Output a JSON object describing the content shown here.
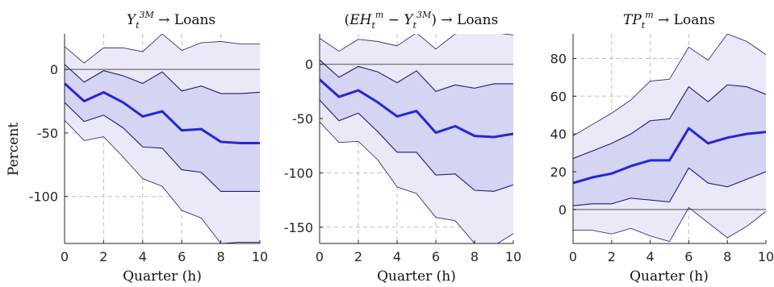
{
  "colors": {
    "outer_band": "#e9e9f8",
    "inner_band": "#d4d4f3",
    "band_edge": "#1c1c6e",
    "median_line": "#2626d4",
    "zero_line": "#6e6e6e",
    "grid": "#bdbdbd",
    "axis": "#262626"
  },
  "chart_data": [
    {
      "type": "area",
      "title": "Y_t^{3M} → Loans",
      "title_parts": {
        "base": "Y",
        "sub": "t",
        "sup": "3M",
        "suffix": " → Loans"
      },
      "xlabel": "Quarter (h)",
      "ylabel": "Percent",
      "xlim": [
        0,
        10
      ],
      "ylim": [
        -137,
        28
      ],
      "xticks": [
        0,
        2,
        4,
        6,
        8,
        10
      ],
      "yticks": [
        0,
        -50,
        -100
      ],
      "x": [
        0,
        1,
        2,
        3,
        4,
        5,
        6,
        7,
        8,
        9,
        10
      ],
      "series": [
        {
          "role": "upper_outer",
          "values": [
            18,
            5,
            17,
            17,
            14,
            28,
            15,
            21,
            22,
            20,
            20
          ]
        },
        {
          "role": "upper_inner",
          "values": [
            4,
            -10,
            -1,
            -5,
            -11,
            -2,
            -17,
            -13,
            -19,
            -19,
            -18
          ]
        },
        {
          "role": "median",
          "values": [
            -11,
            -25,
            -18,
            -26,
            -37,
            -33,
            -48,
            -47,
            -57,
            -58,
            -58
          ]
        },
        {
          "role": "lower_inner",
          "values": [
            -26,
            -41,
            -36,
            -46,
            -61,
            -62,
            -79,
            -81,
            -96,
            -96,
            -96
          ]
        },
        {
          "role": "lower_outer",
          "values": [
            -40,
            -56,
            -53,
            -69,
            -86,
            -92,
            -111,
            -117,
            -137,
            -136,
            -136
          ]
        }
      ],
      "grid": true
    },
    {
      "type": "area",
      "title": "(EH_t^m − Y_t^{3M}) → Loans",
      "title_parts": {
        "lead": "(",
        "base1": "EH",
        "sub1": "t",
        "sup1": "m",
        "minus": " − ",
        "base2": "Y",
        "sub2": "t",
        "sup2": "3M",
        "suffix": ") → Loans"
      },
      "xlabel": "Quarter (h)",
      "ylabel": "",
      "xlim": [
        0,
        10
      ],
      "ylim": [
        -165,
        28
      ],
      "xticks": [
        0,
        2,
        4,
        6,
        8,
        10
      ],
      "yticks": [
        0,
        -50,
        -100,
        -150
      ],
      "x": [
        0,
        1,
        2,
        3,
        4,
        5,
        6,
        7,
        8,
        9,
        10
      ],
      "series": [
        {
          "role": "upper_outer",
          "values": [
            24,
            12,
            23,
            21,
            17,
            29,
            14,
            28,
            31,
            29,
            27
          ]
        },
        {
          "role": "upper_inner",
          "values": [
            4,
            -12,
            -2,
            -7,
            -17,
            -6,
            -25,
            -19,
            -22,
            -18,
            -18
          ]
        },
        {
          "role": "median",
          "values": [
            -14,
            -30,
            -24,
            -35,
            -48,
            -43,
            -63,
            -57,
            -66,
            -67,
            -64
          ]
        },
        {
          "role": "lower_inner",
          "values": [
            -33,
            -52,
            -45,
            -62,
            -81,
            -81,
            -102,
            -101,
            -116,
            -117,
            -111
          ]
        },
        {
          "role": "lower_outer",
          "values": [
            -53,
            -72,
            -71,
            -88,
            -113,
            -119,
            -141,
            -144,
            -165,
            -167,
            -156
          ]
        }
      ],
      "grid": true
    },
    {
      "type": "area",
      "title": "TP_t^m → Loans",
      "title_parts": {
        "base": "TP",
        "sub": "t",
        "sup": "m",
        "suffix": " → Loans"
      },
      "xlabel": "Quarter (h)",
      "ylabel": "",
      "xlim": [
        0,
        10
      ],
      "ylim": [
        -18,
        93
      ],
      "xticks": [
        0,
        2,
        4,
        6,
        8,
        10
      ],
      "yticks": [
        0,
        20,
        40,
        60,
        80
      ],
      "x": [
        0,
        1,
        2,
        3,
        4,
        5,
        6,
        7,
        8,
        9,
        10
      ],
      "series": [
        {
          "role": "upper_outer",
          "values": [
            39,
            45,
            51,
            58,
            68,
            69,
            86,
            79,
            93,
            89,
            82
          ]
        },
        {
          "role": "upper_inner",
          "values": [
            27,
            31,
            35,
            40,
            47,
            48,
            65,
            57,
            66,
            65,
            61
          ]
        },
        {
          "role": "median",
          "values": [
            14,
            17,
            19,
            23,
            26,
            26,
            43,
            35,
            38,
            40,
            41
          ]
        },
        {
          "role": "lower_inner",
          "values": [
            2,
            3,
            3,
            6,
            5,
            4,
            22,
            14,
            12,
            16,
            20
          ]
        },
        {
          "role": "lower_outer",
          "values": [
            -11,
            -11,
            -13,
            -10,
            -14,
            -17,
            1,
            -7,
            -15,
            -9,
            -1
          ]
        }
      ],
      "grid": true
    }
  ]
}
